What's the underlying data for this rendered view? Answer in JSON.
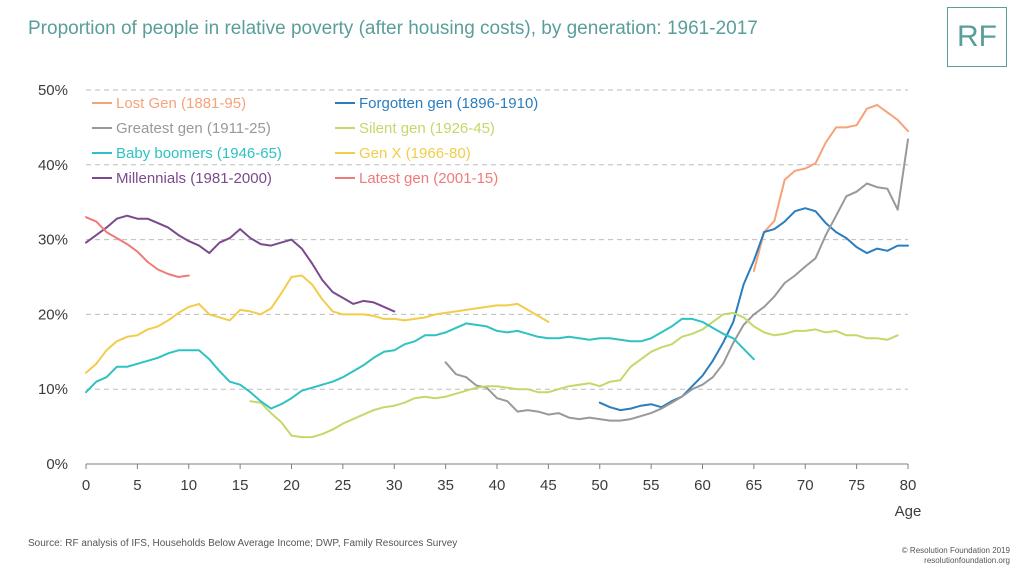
{
  "header": {
    "title": "Proportion of people in relative poverty (after housing costs), by generation: 1961-2017",
    "logo_text": "RF"
  },
  "footer": {
    "source": "Source: RF analysis of IFS, Households Below Average Income; DWP, Family Resources Survey",
    "copyright_line1": "© Resolution Foundation 2019",
    "copyright_line2": "resolutionfoundation.org"
  },
  "chart_data": {
    "type": "line",
    "title": "Proportion of people in relative poverty (after housing costs), by generation: 1961-2017",
    "xlabel": "Age",
    "ylabel": "",
    "xlim": [
      0,
      80
    ],
    "ylim": [
      0,
      50
    ],
    "x_ticks": [
      0,
      5,
      10,
      15,
      20,
      25,
      30,
      35,
      40,
      45,
      50,
      55,
      60,
      65,
      70,
      75,
      80
    ],
    "y_ticks": [
      0,
      10,
      20,
      30,
      40,
      50
    ],
    "y_tick_labels": [
      "0%",
      "10%",
      "20%",
      "30%",
      "40%",
      "50%"
    ],
    "grid": "horizontal dashed",
    "legend_position": "top-left",
    "series": [
      {
        "name": "Lost Gen (1881-95)",
        "color": "#f5a37a",
        "x": [
          65,
          66,
          67,
          68,
          69,
          70,
          71,
          72,
          73,
          74,
          75,
          76,
          77,
          78,
          79,
          80
        ],
        "y": [
          25.8,
          31.0,
          32.5,
          38.0,
          39.2,
          39.5,
          40.2,
          43.0,
          45.0,
          45.0,
          45.3,
          47.5,
          48.0,
          47.0,
          46.0,
          44.5
        ]
      },
      {
        "name": "Forgotten gen (1896-1910)",
        "color": "#2a7dbf",
        "x": [
          50,
          51,
          52,
          53,
          54,
          55,
          56,
          57,
          58,
          59,
          60,
          61,
          62,
          63,
          64,
          65,
          66,
          67,
          68,
          69,
          70,
          71,
          72,
          73,
          74,
          75,
          76,
          77,
          78,
          79,
          80
        ],
        "y": [
          8.2,
          7.6,
          7.2,
          7.4,
          7.8,
          8.0,
          7.6,
          8.4,
          9.0,
          10.4,
          11.8,
          13.8,
          16.2,
          19.0,
          24.0,
          27.2,
          31.0,
          31.4,
          32.4,
          33.8,
          34.2,
          33.8,
          32.2,
          31.0,
          30.2,
          29.0,
          28.2,
          28.8,
          28.5,
          29.2,
          29.2
        ]
      },
      {
        "name": "Greatest gen (1911-25)",
        "color": "#999999",
        "x": [
          35,
          36,
          37,
          38,
          39,
          40,
          41,
          42,
          43,
          44,
          45,
          46,
          47,
          48,
          49,
          50,
          51,
          52,
          53,
          54,
          55,
          56,
          57,
          58,
          59,
          60,
          61,
          62,
          63,
          64,
          65,
          66,
          67,
          68,
          69,
          70,
          71,
          72,
          73,
          74,
          75,
          76,
          77,
          78,
          79,
          80
        ],
        "y": [
          13.6,
          12.0,
          11.6,
          10.5,
          10.2,
          8.8,
          8.4,
          7.0,
          7.2,
          7.0,
          6.6,
          6.8,
          6.2,
          6.0,
          6.2,
          6.0,
          5.8,
          5.8,
          6.0,
          6.4,
          6.8,
          7.4,
          8.2,
          9.0,
          10.0,
          10.6,
          11.6,
          13.4,
          16.2,
          18.6,
          20.0,
          21.0,
          22.4,
          24.2,
          25.2,
          26.4,
          27.5,
          30.6,
          33.2,
          35.8,
          36.4,
          37.5,
          37.0,
          36.8,
          34.0,
          43.4
        ]
      },
      {
        "name": "Silent gen (1926-45)",
        "color": "#c2d96b",
        "x": [
          16,
          17,
          18,
          19,
          20,
          21,
          22,
          23,
          24,
          25,
          26,
          27,
          28,
          29,
          30,
          31,
          32,
          33,
          34,
          35,
          36,
          37,
          38,
          39,
          40,
          41,
          42,
          43,
          44,
          45,
          46,
          47,
          48,
          49,
          50,
          51,
          52,
          53,
          54,
          55,
          56,
          57,
          58,
          59,
          60,
          61,
          62,
          63,
          64,
          65,
          66,
          67,
          68,
          69,
          70,
          71,
          72,
          73,
          74,
          75,
          76,
          77,
          78,
          79
        ],
        "y": [
          8.4,
          8.2,
          6.8,
          5.6,
          3.8,
          3.6,
          3.6,
          4.0,
          4.6,
          5.4,
          6.0,
          6.6,
          7.2,
          7.6,
          7.8,
          8.2,
          8.8,
          9.0,
          8.8,
          9.0,
          9.4,
          9.8,
          10.2,
          10.4,
          10.4,
          10.2,
          10.0,
          10.0,
          9.6,
          9.6,
          10.0,
          10.4,
          10.6,
          10.8,
          10.4,
          11.0,
          11.2,
          13.0,
          14.0,
          15.0,
          15.6,
          16.0,
          17.0,
          17.4,
          18.0,
          19.0,
          20.0,
          20.2,
          19.6,
          18.4,
          17.6,
          17.2,
          17.4,
          17.8,
          17.8,
          18.0,
          17.6,
          17.8,
          17.2,
          17.2,
          16.8,
          16.8,
          16.6,
          17.2
        ]
      },
      {
        "name": "Baby boomers (1946-65)",
        "color": "#2ec2c2",
        "x": [
          0,
          1,
          2,
          3,
          4,
          5,
          6,
          7,
          8,
          9,
          10,
          11,
          12,
          13,
          14,
          15,
          16,
          17,
          18,
          19,
          20,
          21,
          22,
          23,
          24,
          25,
          26,
          27,
          28,
          29,
          30,
          31,
          32,
          33,
          34,
          35,
          36,
          37,
          38,
          39,
          40,
          41,
          42,
          43,
          44,
          45,
          46,
          47,
          48,
          49,
          50,
          51,
          52,
          53,
          54,
          55,
          56,
          57,
          58,
          59,
          60,
          61,
          62,
          63,
          64,
          65
        ],
        "y": [
          9.6,
          11.0,
          11.6,
          13.0,
          13.0,
          13.4,
          13.8,
          14.2,
          14.8,
          15.2,
          15.2,
          15.2,
          14.0,
          12.4,
          11.0,
          10.6,
          9.6,
          8.4,
          7.4,
          8.0,
          8.8,
          9.8,
          10.2,
          10.6,
          11.0,
          11.6,
          12.4,
          13.2,
          14.2,
          15.0,
          15.2,
          16.0,
          16.4,
          17.2,
          17.2,
          17.6,
          18.2,
          18.8,
          18.6,
          18.4,
          17.8,
          17.6,
          17.8,
          17.4,
          17.0,
          16.8,
          16.8,
          17.0,
          16.8,
          16.6,
          16.8,
          16.8,
          16.6,
          16.4,
          16.4,
          16.8,
          17.6,
          18.4,
          19.4,
          19.4,
          19.0,
          18.2,
          17.4,
          16.8,
          15.4,
          14.0
        ]
      },
      {
        "name": "Gen X (1966-80)",
        "color": "#f2cc4a",
        "x": [
          0,
          1,
          2,
          3,
          4,
          5,
          6,
          7,
          8,
          9,
          10,
          11,
          12,
          13,
          14,
          15,
          16,
          17,
          18,
          19,
          20,
          21,
          22,
          23,
          24,
          25,
          26,
          27,
          28,
          29,
          30,
          31,
          32,
          33,
          34,
          35,
          36,
          37,
          38,
          39,
          40,
          41,
          42,
          43,
          44,
          45
        ],
        "y": [
          12.2,
          13.4,
          15.2,
          16.4,
          17.0,
          17.2,
          18.0,
          18.4,
          19.2,
          20.2,
          21.0,
          21.4,
          20.0,
          19.6,
          19.2,
          20.6,
          20.4,
          20.0,
          20.8,
          22.8,
          25.0,
          25.2,
          24.0,
          22.0,
          20.4,
          20.0,
          20.0,
          20.0,
          19.8,
          19.4,
          19.4,
          19.2,
          19.4,
          19.6,
          20.0,
          20.2,
          20.4,
          20.6,
          20.8,
          21.0,
          21.2,
          21.2,
          21.4,
          20.6,
          19.8,
          19.0
        ]
      },
      {
        "name": "Millennials (1981-2000)",
        "color": "#7b4a8c",
        "x": [
          0,
          1,
          2,
          3,
          4,
          5,
          6,
          7,
          8,
          9,
          10,
          11,
          12,
          13,
          14,
          15,
          16,
          17,
          18,
          19,
          20,
          21,
          22,
          23,
          24,
          25,
          26,
          27,
          28,
          29,
          30
        ],
        "y": [
          29.6,
          30.6,
          31.6,
          32.8,
          33.2,
          32.8,
          32.8,
          32.2,
          31.6,
          30.6,
          29.8,
          29.2,
          28.2,
          29.6,
          30.2,
          31.4,
          30.2,
          29.4,
          29.2,
          29.6,
          30.0,
          28.8,
          26.8,
          24.6,
          23.0,
          22.2,
          21.4,
          21.8,
          21.6,
          21.0,
          20.4
        ]
      },
      {
        "name": "Latest gen (2001-15)",
        "color": "#f07a7a",
        "x": [
          0,
          1,
          2,
          3,
          4,
          5,
          6,
          7,
          8,
          9,
          10
        ],
        "y": [
          33.0,
          32.4,
          31.0,
          30.2,
          29.4,
          28.4,
          27.0,
          26.0,
          25.4,
          25.0,
          25.2
        ]
      }
    ]
  }
}
